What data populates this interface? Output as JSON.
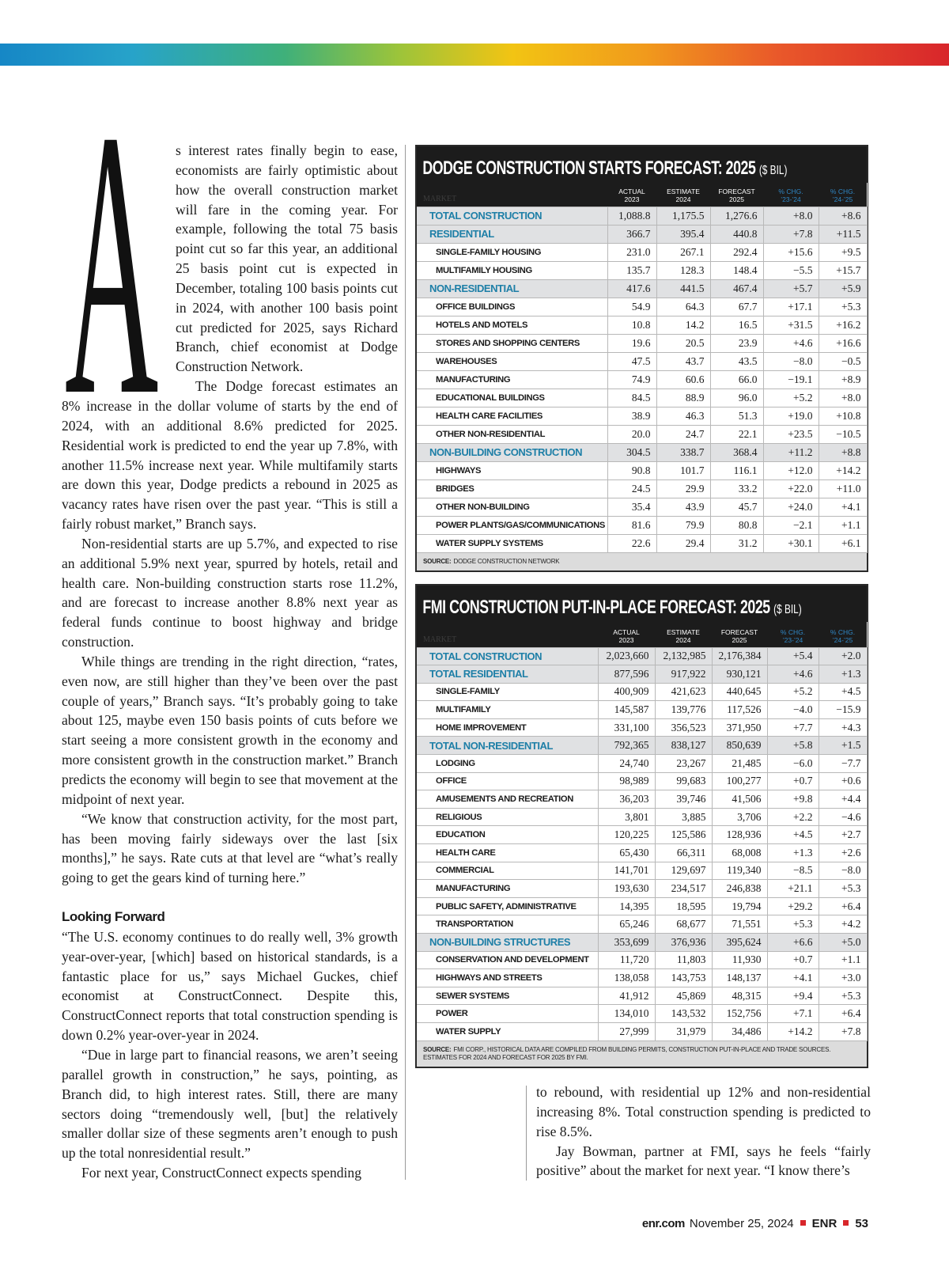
{
  "article": {
    "dropcap": "A",
    "intro": "s interest rates finally begin to ease, economists are fairly optimistic about how the overall construction market will fare in the coming year. For example, following the total 75 basis point cut so far this year, an additional 25 basis point cut is expected in December, totaling 100 basis points cut in 2024, with another 100 basis point cut predicted for 2025, says Richard Branch, chief economist at Dodge Construction Network.",
    "body": [
      "The Dodge forecast estimates an 8% increase in the dollar volume of starts by the end of 2024, with an additional 8.6% predicted for 2025. Residential work is predicted to end the year up 7.8%, with another 11.5% increase next year. While multifamily starts are down this year, Dodge predicts a rebound in 2025 as vacancy rates have risen over the past year. “This is still a fairly robust market,” Branch says.",
      "Non-residential starts are up 5.7%, and expected to rise an additional 5.9% next year, spurred by hotels, retail and health care. Non-building construction starts rose 11.2%, and are forecast to increase another 8.8% next year as federal funds continue to boost highway and bridge construction.",
      "While things are trending in the right direction, “rates, even now, are still higher than they’ve been over the past couple of years,” Branch says. “It’s probably going to take about 125, maybe even 150 basis points of cuts before we start seeing a more consistent growth in the economy and more consistent growth in the construction market.” Branch predicts the economy will begin to see that movement at the midpoint of next year.",
      "“We know that construction activity, for the most part, has been moving fairly sideways over the last [six months],” he says. Rate cuts at that level are “what’s really going to get the gears kind of turning here.”"
    ],
    "subhead": "Looking Forward",
    "body2": [
      "“The U.S. economy continues to do really well, 3% growth year-over-year, [which] based on historical standards, is a fantastic place for us,” says Michael Guckes, chief economist at ConstructConnect. Despite this, ConstructConnect reports that total construction spending is down 0.2% year-over-year in 2024.",
      "“Due in large part to financial reasons, we aren’t seeing parallel growth in construction,” he says, pointing, as Branch did, to high interest rates. Still, there are many sectors doing “tremendously well, [but] the relatively smaller dollar size of these segments aren’t enough to push up the total nonresidential result.”",
      "For next year, ConstructConnect expects spending"
    ],
    "continued": [
      "to rebound, with residential up 12% and non-residential increasing 8%. Total construction spending is predicted to rise 8.5%.",
      "Jay Bowman, partner at FMI, says he feels “fairly positive” about the market for next year. “I know there’s"
    ]
  },
  "dodge_table": {
    "title": "DODGE CONSTRUCTION STARTS FORECAST: 2025",
    "unit": "($ BIL)",
    "market_label": "MARKET",
    "columns": [
      [
        "ACTUAL",
        "2023"
      ],
      [
        "ESTIMATE",
        "2024"
      ],
      [
        "FORECAST",
        "2025"
      ],
      [
        "% CHG.",
        "’23-’24"
      ],
      [
        "% CHG.",
        "’24-’25"
      ]
    ],
    "groups": [
      {
        "row": [
          "TOTAL CONSTRUCTION",
          "1,088.8",
          "1,175.5",
          "1,276.6",
          "+8.0",
          "+8.6"
        ]
      },
      {
        "row": [
          "RESIDENTIAL",
          "366.7",
          "395.4",
          "440.8",
          "+7.8",
          "+11.5"
        ],
        "items": [
          [
            "SINGLE-FAMILY HOUSING",
            "231.0",
            "267.1",
            "292.4",
            "+15.6",
            "+9.5"
          ],
          [
            "MULTIFAMILY HOUSING",
            "135.7",
            "128.3",
            "148.4",
            "−5.5",
            "+15.7"
          ]
        ]
      },
      {
        "row": [
          "NON-RESIDENTIAL",
          "417.6",
          "441.5",
          "467.4",
          "+5.7",
          "+5.9"
        ],
        "items": [
          [
            "OFFICE BUILDINGS",
            "54.9",
            "64.3",
            "67.7",
            "+17.1",
            "+5.3"
          ],
          [
            "HOTELS AND MOTELS",
            "10.8",
            "14.2",
            "16.5",
            "+31.5",
            "+16.2"
          ],
          [
            "STORES AND SHOPPING CENTERS",
            "19.6",
            "20.5",
            "23.9",
            "+4.6",
            "+16.6"
          ],
          [
            "WAREHOUSES",
            "47.5",
            "43.7",
            "43.5",
            "−8.0",
            "−0.5"
          ],
          [
            "MANUFACTURING",
            "74.9",
            "60.6",
            "66.0",
            "−19.1",
            "+8.9"
          ],
          [
            "EDUCATIONAL BUILDINGS",
            "84.5",
            "88.9",
            "96.0",
            "+5.2",
            "+8.0"
          ],
          [
            "HEALTH CARE FACILITIES",
            "38.9",
            "46.3",
            "51.3",
            "+19.0",
            "+10.8"
          ],
          [
            "OTHER NON-RESIDENTIAL",
            "20.0",
            "24.7",
            "22.1",
            "+23.5",
            "−10.5"
          ]
        ]
      },
      {
        "row": [
          "NON-BUILDING CONSTRUCTION",
          "304.5",
          "338.7",
          "368.4",
          "+11.2",
          "+8.8"
        ],
        "items": [
          [
            "HIGHWAYS",
            "90.8",
            "101.7",
            "116.1",
            "+12.0",
            "+14.2"
          ],
          [
            "BRIDGES",
            "24.5",
            "29.9",
            "33.2",
            "+22.0",
            "+11.0"
          ],
          [
            "OTHER NON-BUILDING",
            "35.4",
            "43.9",
            "45.7",
            "+24.0",
            "+4.1"
          ],
          [
            "POWER PLANTS/GAS/COMMUNICATIONS",
            "81.6",
            "79.9",
            "80.8",
            "−2.1",
            "+1.1"
          ],
          [
            "WATER SUPPLY SYSTEMS",
            "22.6",
            "29.4",
            "31.2",
            "+30.1",
            "+6.1"
          ]
        ]
      }
    ],
    "source_label": "SOURCE:",
    "source": "DODGE CONSTRUCTION NETWORK"
  },
  "fmi_table": {
    "title": "FMI CONSTRUCTION PUT-IN-PLACE FORECAST: 2025",
    "unit": "($ BIL)",
    "market_label": "MARKET",
    "columns": [
      [
        "ACTUAL",
        "2023"
      ],
      [
        "ESTIMATE",
        "2024"
      ],
      [
        "FORECAST",
        "2025"
      ],
      [
        "% CHG.",
        "’23-’24"
      ],
      [
        "% CHG.",
        "’24-’25"
      ]
    ],
    "groups": [
      {
        "row": [
          "TOTAL CONSTRUCTION",
          "2,023,660",
          "2,132,985",
          "2,176,384",
          "+5.4",
          "+2.0"
        ]
      },
      {
        "row": [
          "TOTAL RESIDENTIAL",
          "877,596",
          "917,922",
          "930,121",
          "+4.6",
          "+1.3"
        ],
        "items": [
          [
            "SINGLE-FAMILY",
            "400,909",
            "421,623",
            "440,645",
            "+5.2",
            "+4.5"
          ],
          [
            "MULTIFAMILY",
            "145,587",
            "139,776",
            "117,526",
            "−4.0",
            "−15.9"
          ],
          [
            "HOME IMPROVEMENT",
            "331,100",
            "356,523",
            "371,950",
            "+7.7",
            "+4.3"
          ]
        ]
      },
      {
        "row": [
          "TOTAL NON-RESIDENTIAL",
          "792,365",
          "838,127",
          "850,639",
          "+5.8",
          "+1.5"
        ],
        "items": [
          [
            "LODGING",
            "24,740",
            "23,267",
            "21,485",
            "−6.0",
            "−7.7"
          ],
          [
            "OFFICE",
            "98,989",
            "99,683",
            "100,277",
            "+0.7",
            "+0.6"
          ],
          [
            "AMUSEMENTS AND RECREATION",
            "36,203",
            "39,746",
            "41,506",
            "+9.8",
            "+4.4"
          ],
          [
            "RELIGIOUS",
            "3,801",
            "3,885",
            "3,706",
            "+2.2",
            "−4.6"
          ],
          [
            "EDUCATION",
            "120,225",
            "125,586",
            "128,936",
            "+4.5",
            "+2.7"
          ],
          [
            "HEALTH CARE",
            "65,430",
            "66,311",
            "68,008",
            "+1.3",
            "+2.6"
          ],
          [
            "COMMERCIAL",
            "141,701",
            "129,697",
            "119,340",
            "−8.5",
            "−8.0"
          ],
          [
            "MANUFACTURING",
            "193,630",
            "234,517",
            "246,838",
            "+21.1",
            "+5.3"
          ],
          [
            "PUBLIC SAFETY, ADMINISTRATIVE",
            "14,395",
            "18,595",
            "19,794",
            "+29.2",
            "+6.4"
          ],
          [
            "TRANSPORTATION",
            "65,246",
            "68,677",
            "71,551",
            "+5.3",
            "+4.2"
          ]
        ]
      },
      {
        "row": [
          "NON-BUILDING STRUCTURES",
          "353,699",
          "376,936",
          "395,624",
          "+6.6",
          "+5.0"
        ],
        "items": [
          [
            "CONSERVATION AND DEVELOPMENT",
            "11,720",
            "11,803",
            "11,930",
            "+0.7",
            "+1.1"
          ],
          [
            "HIGHWAYS AND STREETS",
            "138,058",
            "143,753",
            "148,137",
            "+4.1",
            "+3.0"
          ],
          [
            "SEWER SYSTEMS",
            "41,912",
            "45,869",
            "48,315",
            "+9.4",
            "+5.3"
          ],
          [
            "POWER",
            "134,010",
            "143,532",
            "152,756",
            "+7.1",
            "+6.4"
          ],
          [
            "WATER SUPPLY",
            "27,999",
            "31,979",
            "34,486",
            "+14.2",
            "+7.8"
          ]
        ]
      }
    ],
    "source_label": "SOURCE:",
    "source": "FMI CORP., HISTORICAL DATA ARE COMPILED FROM BUILDING PERMITS, CONSTRUCTION PUT-IN-PLACE AND TRADE SOURCES. ESTIMATES FOR 2024 AND FORECAST FOR 2025 BY FMI."
  },
  "footer": {
    "site": "enr.com",
    "date": "November 25, 2024",
    "brand": "ENR",
    "page": "53"
  }
}
